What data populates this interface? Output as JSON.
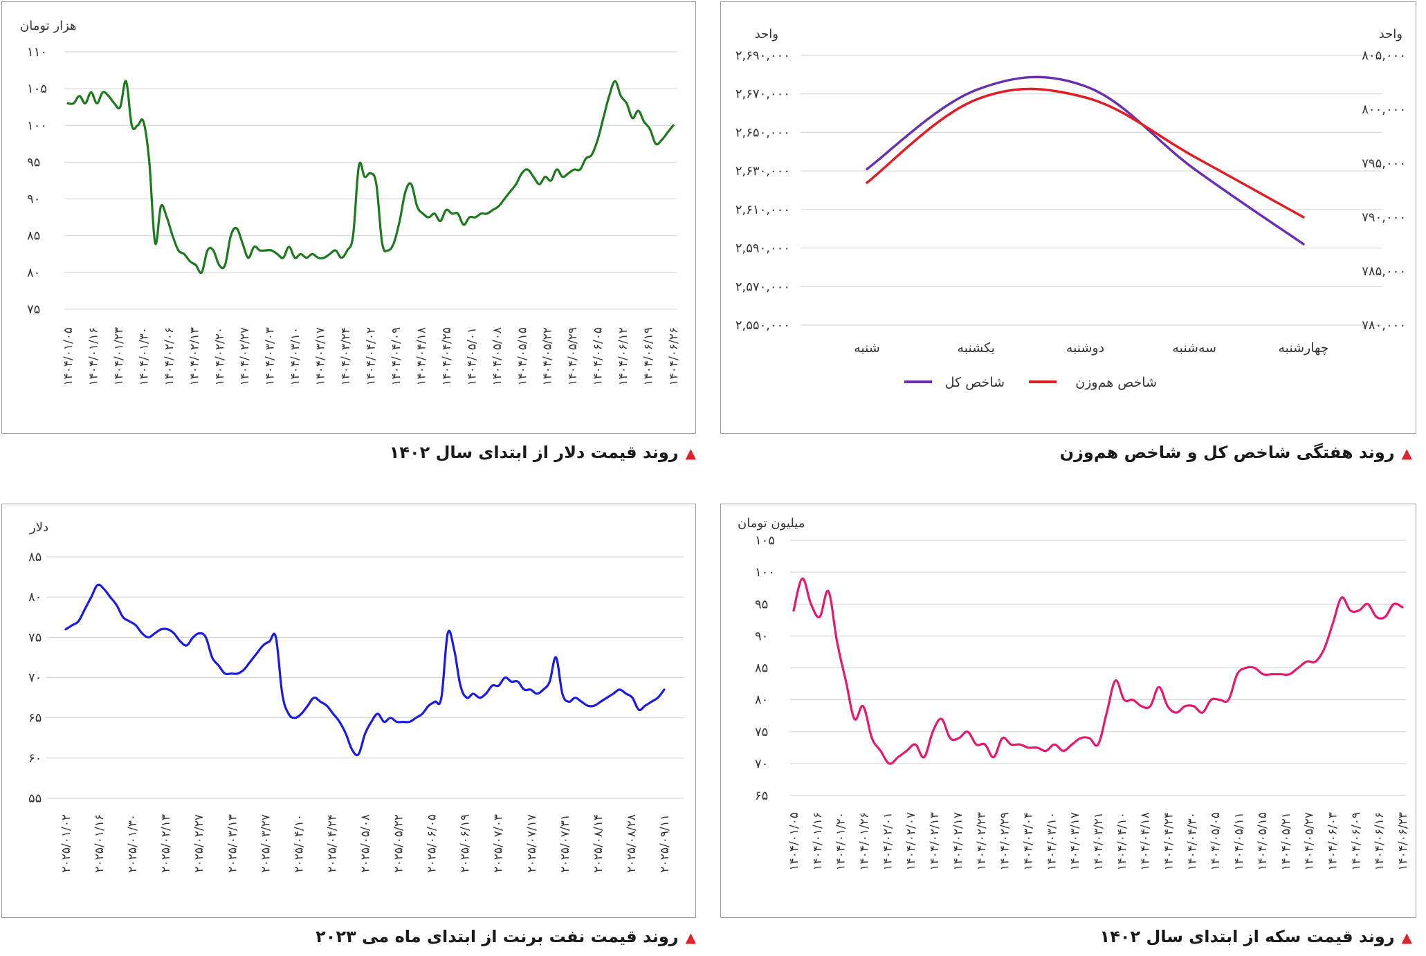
{
  "captions": {
    "tr": "روند هفتگی شاخص کل و شاخص هم‌وزن",
    "tl": "روند قیمت دلار از ابتدای سال ۱۴۰۲",
    "br": "روند قیمت سکه از ابتدای سال ۱۴۰۲",
    "bl": "روند قیمت نفت برنت از ابتدای ماه می ۲۰۲۳"
  },
  "colors": {
    "kol": "#6a2fb0",
    "hamvazn": "#e31b23",
    "dollar": "#1b7a1b",
    "coin": "#e8176e",
    "brent": "#1a1ae6",
    "caption_marker": "#e0232a"
  },
  "chart_data": [
    {
      "id": "index",
      "type": "line",
      "y_unit_left": "واحد",
      "y_unit_right": "واحد",
      "categories": [
        "شنبه",
        "یکشنبه",
        "دوشنبه",
        "سه‌شنبه",
        "چهارشنبه"
      ],
      "ylim_left": [
        2550000,
        2690000
      ],
      "yticks_left": [
        "۲,۵۵۰,۰۰۰",
        "۲,۵۷۰,۰۰۰",
        "۲,۵۹۰,۰۰۰",
        "۲,۶۱۰,۰۰۰",
        "۲,۶۳۰,۰۰۰",
        "۲,۶۵۰,۰۰۰",
        "۲,۶۷۰,۰۰۰",
        "۲,۶۹۰,۰۰۰"
      ],
      "ylim_right": [
        780000,
        805000
      ],
      "yticks_right": [
        "۷۸۰,۰۰۰",
        "۷۸۵,۰۰۰",
        "۷۹۰,۰۰۰",
        "۷۹۵,۰۰۰",
        "۸۰۰,۰۰۰",
        "۸۰۵,۰۰۰"
      ],
      "legend": [
        "شاخص کل",
        "شاخص هم‌وزن"
      ],
      "series": [
        {
          "name": "شاخص کل",
          "axis": "left",
          "values": [
            2631000,
            2672000,
            2674000,
            2631000,
            2592000
          ]
        },
        {
          "name": "شاخص هم‌وزن",
          "axis": "right",
          "values": [
            793200,
            800900,
            801100,
            795600,
            790000
          ]
        }
      ]
    },
    {
      "id": "dollar",
      "type": "line",
      "y_unit": "هزار تومان",
      "ylim": [
        75,
        110
      ],
      "yticks": [
        "۷۵",
        "۸۰",
        "۸۵",
        "۹۰",
        "۹۵",
        "۱۰۰",
        "۱۰۵",
        "۱۱۰"
      ],
      "xticks": [
        "۱۴۰۴/۰۱/۰۵",
        "۱۴۰۴/۰۱/۱۶",
        "۱۴۰۴/۰۱/۲۳",
        "۱۴۰۴/۰۱/۳۰",
        "۱۴۰۴/۰۲/۰۶",
        "۱۴۰۴/۰۲/۱۳",
        "۱۴۰۴/۰۲/۲۰",
        "۱۴۰۴/۰۲/۲۷",
        "۱۴۰۴/۰۳/۰۳",
        "۱۴۰۴/۰۳/۱۰",
        "۱۴۰۴/۰۳/۱۷",
        "۱۴۰۴/۰۳/۲۴",
        "۱۴۰۴/۰۴/۰۲",
        "۱۴۰۴/۰۴/۰۹",
        "۱۴۰۴/۰۴/۱۸",
        "۱۴۰۴/۰۴/۲۵",
        "۱۴۰۴/۰۵/۰۱",
        "۱۴۰۴/۰۵/۰۸",
        "۱۴۰۴/۰۵/۱۵",
        "۱۴۰۴/۰۵/۲۲",
        "۱۴۰۴/۰۵/۲۹",
        "۱۴۰۴/۰۶/۰۵",
        "۱۴۰۴/۰۶/۱۲",
        "۱۴۰۴/۰۶/۱۹",
        "۱۴۰۴/۰۶/۲۶"
      ],
      "values": [
        103,
        103,
        104,
        103,
        104.5,
        103,
        104.5,
        104,
        103,
        102.5,
        106,
        100,
        100,
        100.5,
        95,
        84,
        89,
        87.5,
        85,
        83,
        82.5,
        81.5,
        81,
        80,
        83,
        83,
        81,
        81,
        85,
        86,
        84,
        82,
        83.5,
        83,
        83,
        83,
        82.5,
        82,
        83.5,
        82,
        82.5,
        82,
        82.5,
        82,
        82,
        82.5,
        83,
        82,
        83,
        85,
        94.5,
        93,
        93.5,
        92,
        84,
        83,
        84,
        87,
        91,
        92,
        89,
        88,
        87.5,
        88,
        87,
        88.5,
        88,
        88,
        86.5,
        87.5,
        87.5,
        88,
        88,
        88.5,
        89,
        90,
        91,
        92,
        93.5,
        94,
        93,
        92,
        93,
        92.5,
        94,
        93,
        93.5,
        94,
        94,
        95.5,
        96,
        98,
        101,
        104,
        106,
        104,
        103,
        101,
        102,
        100.5,
        99.5,
        97.5,
        98,
        99,
        100
      ]
    },
    {
      "id": "coin",
      "type": "line",
      "y_unit": "میلیون تومان",
      "ylim": [
        65,
        105
      ],
      "yticks": [
        "۶۵",
        "۷۰",
        "۷۵",
        "۸۰",
        "۸۵",
        "۹۰",
        "۹۵",
        "۱۰۰",
        "۱۰۵"
      ],
      "xticks": [
        "۱۴۰۴/۰۱/۰۵",
        "۱۴۰۴/۰۱/۱۶",
        "۱۴۰۴/۰۱/۲۰",
        "۱۴۰۴/۰۱/۲۶",
        "۱۴۰۴/۰۲/۰۱",
        "۱۴۰۴/۰۲/۰۷",
        "۱۴۰۴/۰۲/۱۳",
        "۱۴۰۴/۰۲/۱۷",
        "۱۴۰۴/۰۲/۲۳",
        "۱۴۰۴/۰۲/۲۹",
        "۱۴۰۴/۰۳/۰۴",
        "۱۴۰۴/۰۳/۱۰",
        "۱۴۰۴/۰۳/۱۷",
        "۱۴۰۴/۰۳/۲۱",
        "۱۴۰۴/۰۴/۱۰",
        "۱۴۰۴/۰۴/۱۸",
        "۱۴۰۴/۰۴/۲۴",
        "۱۴۰۴/۰۴/۳۰",
        "۱۴۰۴/۰۵/۰۵",
        "۱۴۰۴/۰۵/۱۱",
        "۱۴۰۴/۰۵/۱۵",
        "۱۴۰۴/۰۵/۲۱",
        "۱۴۰۴/۰۵/۲۷",
        "۱۴۰۴/۰۶/۰۳",
        "۱۴۰۴/۰۶/۰۹",
        "۱۴۰۴/۰۶/۱۶",
        "۱۴۰۴/۰۶/۲۳"
      ],
      "values": [
        94,
        99,
        95,
        93,
        97,
        89,
        83,
        77,
        79,
        74,
        72,
        70,
        71,
        72,
        73,
        71,
        75,
        77,
        74,
        74,
        75,
        73,
        73,
        71,
        74,
        73,
        73,
        72.5,
        72.5,
        72,
        73,
        72,
        73,
        74,
        74,
        73,
        78,
        83,
        80,
        80,
        79,
        79,
        82,
        79,
        78,
        79,
        79,
        78,
        80,
        80,
        80,
        84,
        85,
        85,
        84,
        84,
        84,
        84,
        85,
        86,
        86,
        88,
        92,
        96,
        94,
        94,
        95,
        93,
        93,
        95,
        94.5
      ]
    },
    {
      "id": "brent",
      "type": "line",
      "y_unit": "دلار",
      "ylim": [
        55,
        85
      ],
      "yticks": [
        "۵۵",
        "۶۰",
        "۶۵",
        "۷۰",
        "۷۵",
        "۸۰",
        "۸۵"
      ],
      "xticks": [
        "۲۰۲۵/۰۱/۰۲",
        "۲۰۲۵/۰۱/۱۶",
        "۲۰۲۵/۰۱/۳۰",
        "۲۰۲۵/۰۲/۱۳",
        "۲۰۲۵/۰۲/۲۷",
        "۲۰۲۵/۰۳/۱۳",
        "۲۰۲۵/۰۳/۲۷",
        "۲۰۲۵/۰۴/۱۰",
        "۲۰۲۵/۰۴/۲۴",
        "۲۰۲۵/۰۵/۰۸",
        "۲۰۲۵/۰۵/۲۲",
        "۲۰۲۵/۰۶/۰۵",
        "۲۰۲۵/۰۶/۱۹",
        "۲۰۲۵/۰۷/۰۳",
        "۲۰۲۵/۰۷/۱۷",
        "۲۰۲۵/۰۷/۳۱",
        "۲۰۲۵/۰۸/۱۴",
        "۲۰۲۵/۰۸/۲۸",
        "۲۰۲۵/۰۹/۱۱"
      ],
      "values": [
        76,
        76.5,
        77,
        78.5,
        80,
        81.5,
        81,
        80,
        79,
        77.5,
        77,
        76.5,
        75.5,
        75,
        75.5,
        76,
        76,
        75.5,
        74.5,
        74,
        75,
        75.5,
        75,
        72.5,
        71.5,
        70.5,
        70.5,
        70.5,
        71,
        72,
        73,
        74,
        74.5,
        75,
        68,
        65.5,
        65,
        65.5,
        66.5,
        67.5,
        67,
        66.5,
        65.5,
        64.5,
        63,
        61,
        60.5,
        63,
        64.5,
        65.5,
        64.5,
        65,
        64.5,
        64.5,
        64.5,
        65,
        65.5,
        66.5,
        67,
        67.5,
        75.5,
        73.5,
        69,
        67.5,
        68,
        67.5,
        68,
        69,
        69,
        70,
        69.5,
        69.5,
        68.5,
        68.5,
        68,
        68.5,
        69.5,
        72.5,
        68,
        67,
        67.5,
        67,
        66.5,
        66.5,
        67,
        67.5,
        68,
        68.5,
        68,
        67.5,
        66,
        66.5,
        67,
        67.5,
        68.5
      ]
    }
  ]
}
